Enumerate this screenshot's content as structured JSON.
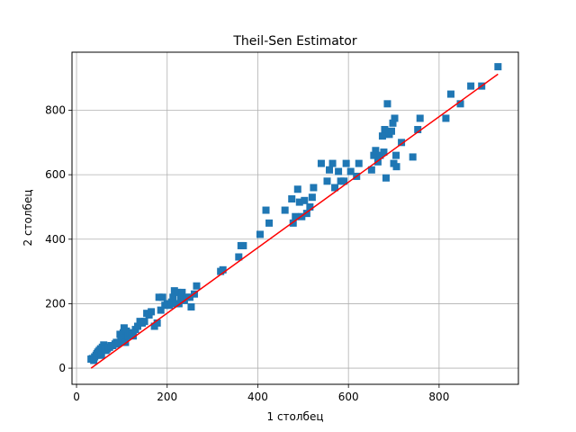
{
  "chart_data": {
    "type": "scatter",
    "title": "Theil-Sen Estimator",
    "xlabel": "1 столбец",
    "ylabel": "2 столбец",
    "xlim": [
      -10,
      975
    ],
    "ylim": [
      -50,
      980
    ],
    "xticks": [
      0,
      200,
      400,
      600,
      800
    ],
    "yticks": [
      0,
      200,
      400,
      600,
      800
    ],
    "grid": true,
    "marker": "square",
    "point_color": "#1f77b4",
    "line_color": "#ff0000",
    "points": [
      [
        32,
        28
      ],
      [
        35,
        30
      ],
      [
        38,
        24
      ],
      [
        40,
        35
      ],
      [
        43,
        40
      ],
      [
        45,
        45
      ],
      [
        47,
        50
      ],
      [
        50,
        55
      ],
      [
        53,
        60
      ],
      [
        55,
        40
      ],
      [
        57,
        65
      ],
      [
        60,
        72
      ],
      [
        62,
        60
      ],
      [
        65,
        55
      ],
      [
        68,
        60
      ],
      [
        70,
        65
      ],
      [
        73,
        65
      ],
      [
        76,
        70
      ],
      [
        80,
        70
      ],
      [
        85,
        75
      ],
      [
        88,
        80
      ],
      [
        90,
        75
      ],
      [
        93,
        80
      ],
      [
        96,
        105
      ],
      [
        98,
        90
      ],
      [
        100,
        95
      ],
      [
        103,
        110
      ],
      [
        105,
        125
      ],
      [
        108,
        80
      ],
      [
        110,
        115
      ],
      [
        113,
        100
      ],
      [
        115,
        100
      ],
      [
        118,
        110
      ],
      [
        122,
        105
      ],
      [
        125,
        100
      ],
      [
        130,
        120
      ],
      [
        135,
        130
      ],
      [
        140,
        145
      ],
      [
        145,
        140
      ],
      [
        150,
        145
      ],
      [
        155,
        170
      ],
      [
        160,
        165
      ],
      [
        165,
        175
      ],
      [
        172,
        130
      ],
      [
        178,
        140
      ],
      [
        182,
        220
      ],
      [
        186,
        180
      ],
      [
        190,
        220
      ],
      [
        195,
        195
      ],
      [
        200,
        200
      ],
      [
        205,
        195
      ],
      [
        210,
        205
      ],
      [
        213,
        220
      ],
      [
        216,
        240
      ],
      [
        220,
        200
      ],
      [
        223,
        235
      ],
      [
        226,
        200
      ],
      [
        230,
        215
      ],
      [
        233,
        235
      ],
      [
        238,
        210
      ],
      [
        243,
        220
      ],
      [
        250,
        220
      ],
      [
        253,
        190
      ],
      [
        260,
        230
      ],
      [
        265,
        255
      ],
      [
        318,
        300
      ],
      [
        323,
        305
      ],
      [
        358,
        345
      ],
      [
        363,
        380
      ],
      [
        368,
        380
      ],
      [
        405,
        415
      ],
      [
        418,
        490
      ],
      [
        425,
        450
      ],
      [
        460,
        490
      ],
      [
        475,
        525
      ],
      [
        478,
        450
      ],
      [
        483,
        470
      ],
      [
        488,
        555
      ],
      [
        492,
        515
      ],
      [
        497,
        470
      ],
      [
        503,
        520
      ],
      [
        508,
        480
      ],
      [
        515,
        500
      ],
      [
        520,
        530
      ],
      [
        523,
        560
      ],
      [
        540,
        635
      ],
      [
        553,
        580
      ],
      [
        558,
        615
      ],
      [
        565,
        635
      ],
      [
        570,
        560
      ],
      [
        578,
        610
      ],
      [
        583,
        580
      ],
      [
        590,
        580
      ],
      [
        595,
        635
      ],
      [
        605,
        610
      ],
      [
        618,
        595
      ],
      [
        623,
        635
      ],
      [
        651,
        615
      ],
      [
        656,
        660
      ],
      [
        660,
        675
      ],
      [
        665,
        640
      ],
      [
        670,
        660
      ],
      [
        675,
        720
      ],
      [
        678,
        670
      ],
      [
        680,
        740
      ],
      [
        683,
        590
      ],
      [
        686,
        820
      ],
      [
        690,
        725
      ],
      [
        695,
        735
      ],
      [
        698,
        760
      ],
      [
        700,
        635
      ],
      [
        702,
        775
      ],
      [
        705,
        660
      ],
      [
        706,
        625
      ],
      [
        717,
        700
      ],
      [
        742,
        655
      ],
      [
        753,
        740
      ],
      [
        758,
        775
      ],
      [
        815,
        775
      ],
      [
        826,
        850
      ],
      [
        847,
        820
      ],
      [
        870,
        875
      ],
      [
        894,
        875
      ],
      [
        930,
        935
      ]
    ],
    "fit_line": {
      "x": [
        32,
        930
      ],
      "y": [
        0,
        912
      ]
    }
  }
}
